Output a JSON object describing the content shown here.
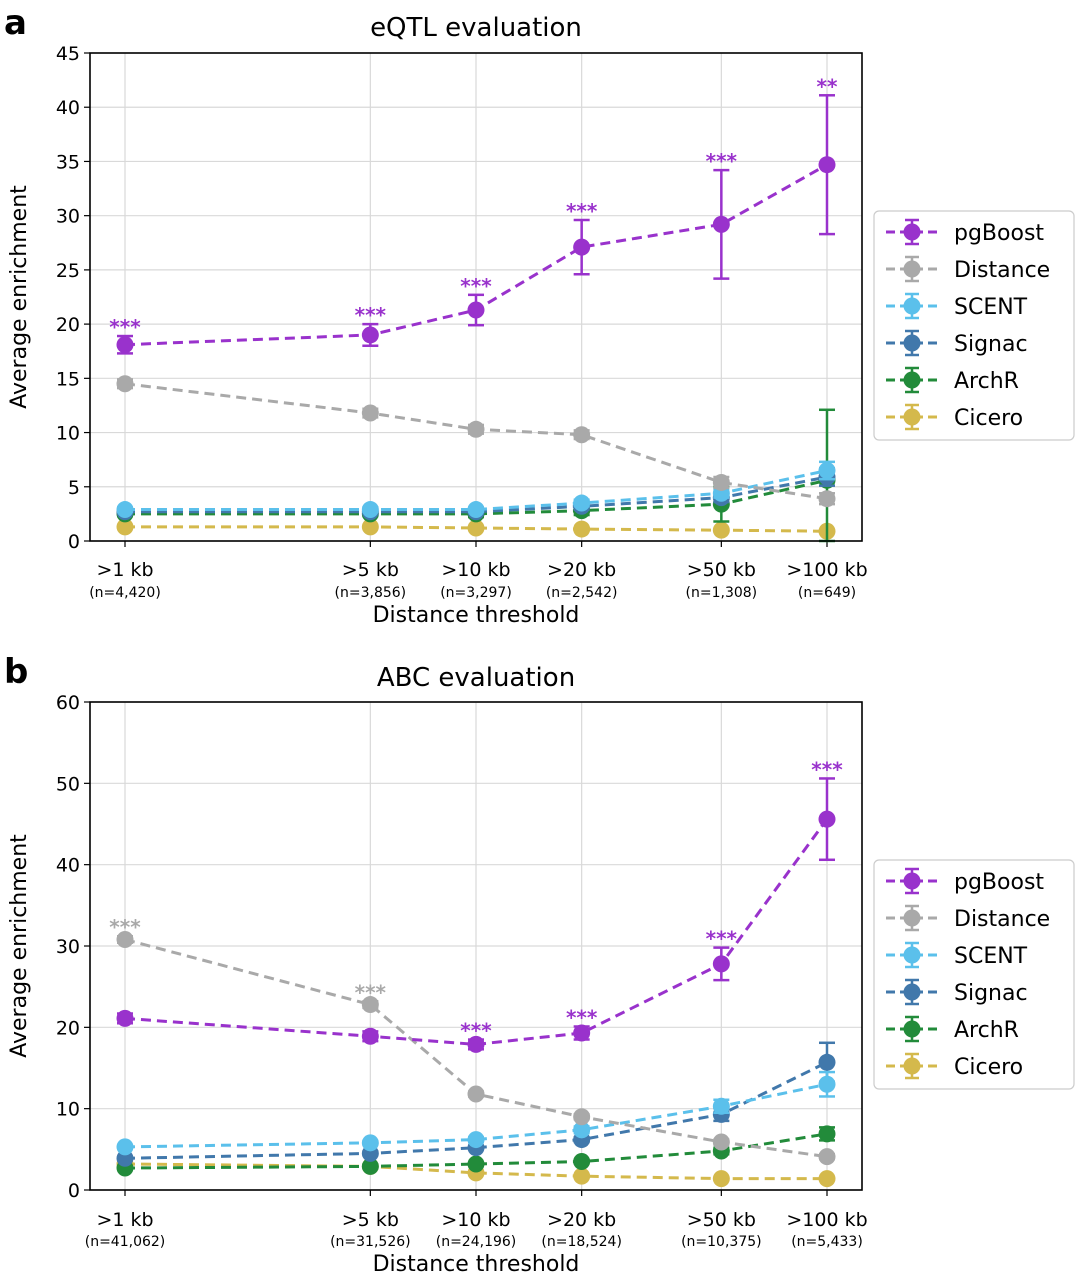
{
  "colors": {
    "pgBoost": "#9932cc",
    "Distance": "#a9a9a9",
    "SCENT": "#5bc0eb",
    "Signac": "#4178ab",
    "ArchR": "#228b3a",
    "Cicero": "#d4b94c",
    "grid": "#d9d9d9"
  },
  "chart_data": [
    {
      "panel_letter": "a",
      "type": "line",
      "title": "eQTL evaluation",
      "xlabel": "Distance threshold",
      "ylabel": "Average enrichment",
      "x_values_kb": [
        1,
        5,
        10,
        20,
        50,
        100
      ],
      "categories": [
        ">1 kb",
        ">5 kb",
        ">10 kb",
        ">20 kb",
        ">50 kb",
        ">100 kb"
      ],
      "n_labels": [
        "(n=4,420)",
        "(n=3,856)",
        "(n=3,297)",
        "(n=2,542)",
        "(n=1,308)",
        "(n=649)"
      ],
      "ylim": [
        0,
        45
      ],
      "yticks": [
        0,
        5,
        10,
        15,
        20,
        25,
        30,
        35,
        40,
        45
      ],
      "grid": true,
      "legend_position": "right-center",
      "series": [
        {
          "name": "pgBoost",
          "color_key": "pgBoost",
          "values": [
            18.1,
            19.0,
            21.3,
            27.1,
            29.2,
            34.7
          ],
          "errors": [
            0.8,
            1.0,
            1.4,
            2.5,
            5.0,
            6.4
          ],
          "significance": [
            "***",
            "***",
            "***",
            "***",
            "***",
            "**"
          ]
        },
        {
          "name": "Distance",
          "color_key": "Distance",
          "values": [
            14.5,
            11.8,
            10.3,
            9.8,
            5.4,
            3.9
          ],
          "errors": [
            0.4,
            0.4,
            0.4,
            0.4,
            0.5,
            0.5
          ],
          "significance": [
            "",
            "",
            "",
            "",
            "",
            ""
          ]
        },
        {
          "name": "SCENT",
          "color_key": "SCENT",
          "values": [
            2.9,
            2.9,
            2.9,
            3.5,
            4.4,
            6.5
          ],
          "errors": [
            0.2,
            0.2,
            0.2,
            0.3,
            0.4,
            0.8
          ],
          "significance": [
            "",
            "",
            "",
            "",
            "",
            ""
          ]
        },
        {
          "name": "Signac",
          "color_key": "Signac",
          "values": [
            2.7,
            2.7,
            2.7,
            3.2,
            4.0,
            5.9
          ],
          "errors": [
            0.2,
            0.2,
            0.2,
            0.3,
            0.4,
            0.8
          ],
          "significance": [
            "",
            "",
            "",
            "",
            "",
            ""
          ]
        },
        {
          "name": "ArchR",
          "color_key": "ArchR",
          "values": [
            2.5,
            2.5,
            2.5,
            2.8,
            3.4,
            5.6
          ],
          "errors": [
            0.2,
            0.2,
            0.3,
            0.4,
            1.6,
            6.5
          ],
          "significance": [
            "",
            "",
            "",
            "",
            "",
            ""
          ]
        },
        {
          "name": "Cicero",
          "color_key": "Cicero",
          "values": [
            1.3,
            1.3,
            1.2,
            1.1,
            1.0,
            0.9
          ],
          "errors": [
            0.1,
            0.1,
            0.1,
            0.1,
            0.1,
            0.1
          ],
          "significance": [
            "",
            "",
            "",
            "",
            "",
            ""
          ]
        }
      ]
    },
    {
      "panel_letter": "b",
      "type": "line",
      "title": "ABC evaluation",
      "xlabel": "Distance threshold",
      "ylabel": "Average enrichment",
      "x_values_kb": [
        1,
        5,
        10,
        20,
        50,
        100
      ],
      "categories": [
        ">1 kb",
        ">5 kb",
        ">10 kb",
        ">20 kb",
        ">50 kb",
        ">100 kb"
      ],
      "n_labels": [
        "(n=41,062)",
        "(n=31,526)",
        "(n=24,196)",
        "(n=18,524)",
        "(n=10,375)",
        "(n=5,433)"
      ],
      "ylim": [
        0,
        60
      ],
      "yticks": [
        0,
        10,
        20,
        30,
        40,
        50,
        60
      ],
      "grid": true,
      "legend_position": "right-center",
      "series": [
        {
          "name": "pgBoost",
          "color_key": "pgBoost",
          "values": [
            21.1,
            18.9,
            17.9,
            19.3,
            27.8,
            45.6
          ],
          "errors": [
            0.6,
            0.6,
            0.6,
            0.8,
            2.0,
            5.0
          ],
          "significance": [
            "",
            "",
            "***",
            "***",
            "***",
            "***"
          ]
        },
        {
          "name": "Distance",
          "color_key": "Distance",
          "values": [
            30.8,
            22.8,
            11.8,
            9.0,
            5.9,
            4.1
          ],
          "errors": [
            0.4,
            0.4,
            0.3,
            0.3,
            0.3,
            0.3
          ],
          "significance": [
            "***",
            "***",
            "",
            "",
            "",
            ""
          ]
        },
        {
          "name": "SCENT",
          "color_key": "SCENT",
          "values": [
            5.3,
            5.8,
            6.2,
            7.4,
            10.3,
            13.0
          ],
          "errors": [
            0.2,
            0.2,
            0.3,
            0.4,
            0.8,
            1.5
          ],
          "significance": [
            "",
            "",
            "",
            "",
            "",
            ""
          ]
        },
        {
          "name": "Signac",
          "color_key": "Signac",
          "values": [
            3.9,
            4.5,
            5.2,
            6.2,
            9.3,
            15.7
          ],
          "errors": [
            0.2,
            0.2,
            0.2,
            0.3,
            0.8,
            2.4
          ],
          "significance": [
            "",
            "",
            "",
            "",
            "",
            ""
          ]
        },
        {
          "name": "ArchR",
          "color_key": "ArchR",
          "values": [
            2.7,
            2.9,
            3.2,
            3.5,
            4.8,
            6.9
          ],
          "errors": [
            0.2,
            0.2,
            0.2,
            0.2,
            0.4,
            0.8
          ],
          "significance": [
            "",
            "",
            "",
            "",
            "",
            ""
          ]
        },
        {
          "name": "Cicero",
          "color_key": "Cicero",
          "values": [
            3.2,
            2.9,
            2.1,
            1.7,
            1.4,
            1.4
          ],
          "errors": [
            0.1,
            0.1,
            0.1,
            0.1,
            0.1,
            0.1
          ],
          "significance": [
            "",
            "",
            "",
            "",
            "",
            ""
          ]
        }
      ]
    }
  ]
}
